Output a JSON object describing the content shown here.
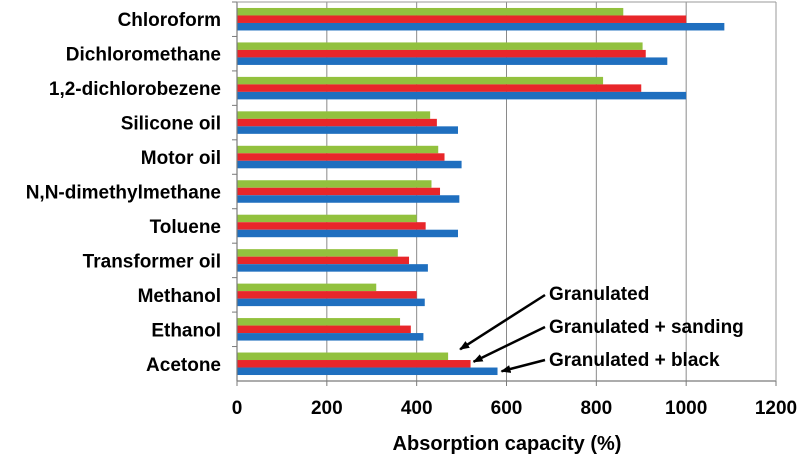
{
  "chart_data": {
    "type": "bar",
    "orientation": "horizontal",
    "title": "",
    "xlabel": "Absorption capacity (%)",
    "ylabel": "",
    "xlim": [
      0,
      1200
    ],
    "xticks": [
      0,
      200,
      400,
      600,
      800,
      1000,
      1200
    ],
    "xtick_labels": [
      "0",
      "200",
      "400",
      "600",
      "800",
      "1000",
      "1200"
    ],
    "grid": "vertical gridlines at major ticks",
    "legend": "none; series identified by arrow annotations at bottom-right",
    "categories": [
      "Chloroform",
      "Dichloromethane",
      "1,2-dichlorobezene",
      "Silicone oil",
      "Motor oil",
      "N,N-dimethylmethane",
      "Toluene",
      "Transformer oil",
      "Methanol",
      "Ethanol",
      "Acetone"
    ],
    "series": [
      {
        "name": "Granulated",
        "color": "#92c13e",
        "values": [
          860,
          903,
          815,
          430,
          448,
          433,
          400,
          358,
          310,
          363,
          470
        ]
      },
      {
        "name": "Granulated + sanding",
        "color": "#e8262a",
        "values": [
          1000,
          910,
          900,
          445,
          462,
          452,
          420,
          383,
          400,
          387,
          520
        ]
      },
      {
        "name": "Granulated + black",
        "color": "#1f6fbf",
        "values": [
          1085,
          958,
          1000,
          492,
          500,
          495,
          492,
          425,
          418,
          415,
          580
        ]
      }
    ],
    "annotations": [
      {
        "text": "Granulated",
        "series": "Granulated",
        "category": "Acetone"
      },
      {
        "text": "Granulated + sanding",
        "series": "Granulated + sanding",
        "category": "Acetone"
      },
      {
        "text": "Granulated + black",
        "series": "Granulated + black",
        "category": "Acetone"
      }
    ]
  }
}
